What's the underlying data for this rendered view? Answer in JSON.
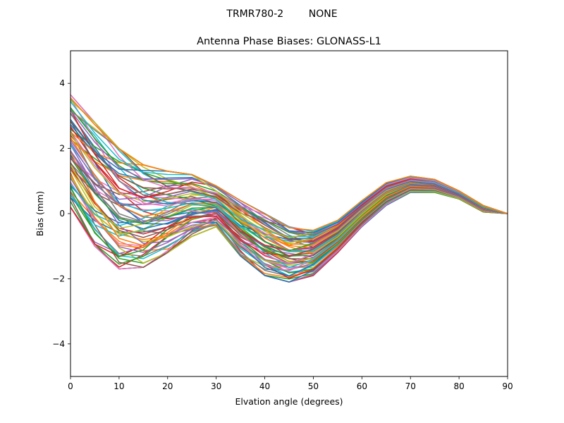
{
  "figure": {
    "suptitle": "TRMR780-2        NONE"
  },
  "chart_data": {
    "type": "line",
    "title": "Antenna Phase Biases: GLONASS-L1",
    "xlabel": "Elvation angle (degrees)",
    "ylabel": "Bias (mm)",
    "xlim": [
      0,
      90
    ],
    "ylim": [
      -5,
      5
    ],
    "xticks": [
      0,
      10,
      20,
      30,
      40,
      50,
      60,
      70,
      80,
      90
    ],
    "yticks": [
      -4,
      -2,
      0,
      2,
      4
    ],
    "x": [
      0,
      5,
      10,
      15,
      20,
      25,
      30,
      35,
      40,
      45,
      50,
      55,
      60,
      65,
      70,
      75,
      80,
      85,
      90
    ],
    "grid": false,
    "legend": "none",
    "series_note_count": 72,
    "series_colors": [
      "#1f77b4",
      "#ff7f0e",
      "#2ca02c",
      "#d62728",
      "#9467bd",
      "#8c564b",
      "#e377c2",
      "#7f7f7f",
      "#bcbd22",
      "#17becf"
    ],
    "series_envelope": {
      "min": [
        0.2,
        -1.0,
        -1.7,
        -1.65,
        -1.2,
        -0.7,
        -0.4,
        -1.3,
        -1.9,
        -2.1,
        -1.9,
        -1.2,
        -0.4,
        0.25,
        0.65,
        0.65,
        0.45,
        0.05,
        0.0
      ],
      "max": [
        3.65,
        2.8,
        2.0,
        1.5,
        1.3,
        1.2,
        0.85,
        0.4,
        0.0,
        -0.4,
        -0.5,
        -0.2,
        0.4,
        0.95,
        1.15,
        1.05,
        0.7,
        0.25,
        0.0
      ]
    }
  }
}
